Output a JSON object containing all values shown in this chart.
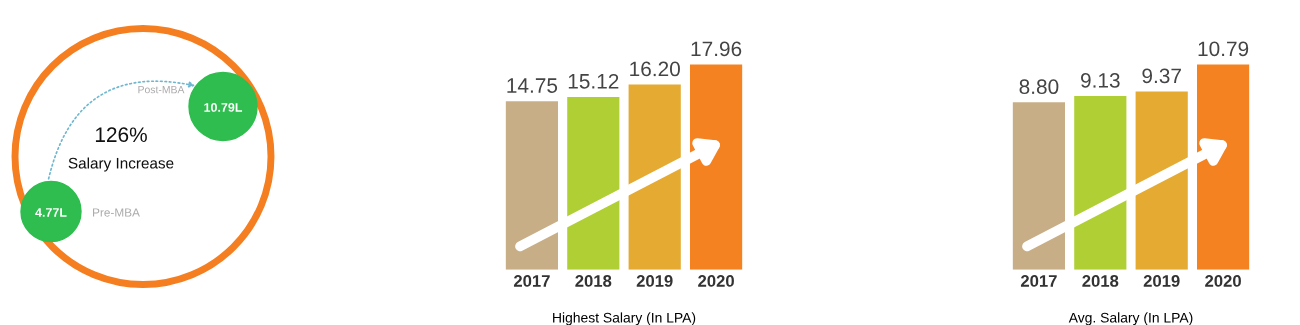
{
  "chart_data": [
    {
      "type": "other",
      "annotations": [
        "126%",
        "Salary Increase",
        "Post-MBA",
        "10.79L",
        "Pre-MBA",
        "4.77L"
      ]
    },
    {
      "type": "bar",
      "xlabel": "Highest Salary (In LPA)",
      "categories": [
        "2017",
        "2018",
        "2019",
        "2020"
      ],
      "values": [
        14.75,
        15.12,
        16.2,
        17.96
      ],
      "value_labels": [
        "14.75",
        "15.12",
        "16.20",
        "17.96"
      ],
      "colors": [
        "#c8ae87",
        "#b0cf34",
        "#e4aa32",
        "#f58220"
      ],
      "tick_labels": "x"
    },
    {
      "type": "bar",
      "xlabel": "Avg. Salary (In LPA)",
      "categories": [
        "2017",
        "2018",
        "2019",
        "2020"
      ],
      "values": [
        8.8,
        9.13,
        9.37,
        10.79
      ],
      "value_labels": [
        "8.80",
        "9.13",
        "9.37",
        "10.79"
      ],
      "colors": [
        "#c8ae87",
        "#b0cf34",
        "#e4aa32",
        "#f58220"
      ],
      "tick_labels": "x"
    }
  ]
}
